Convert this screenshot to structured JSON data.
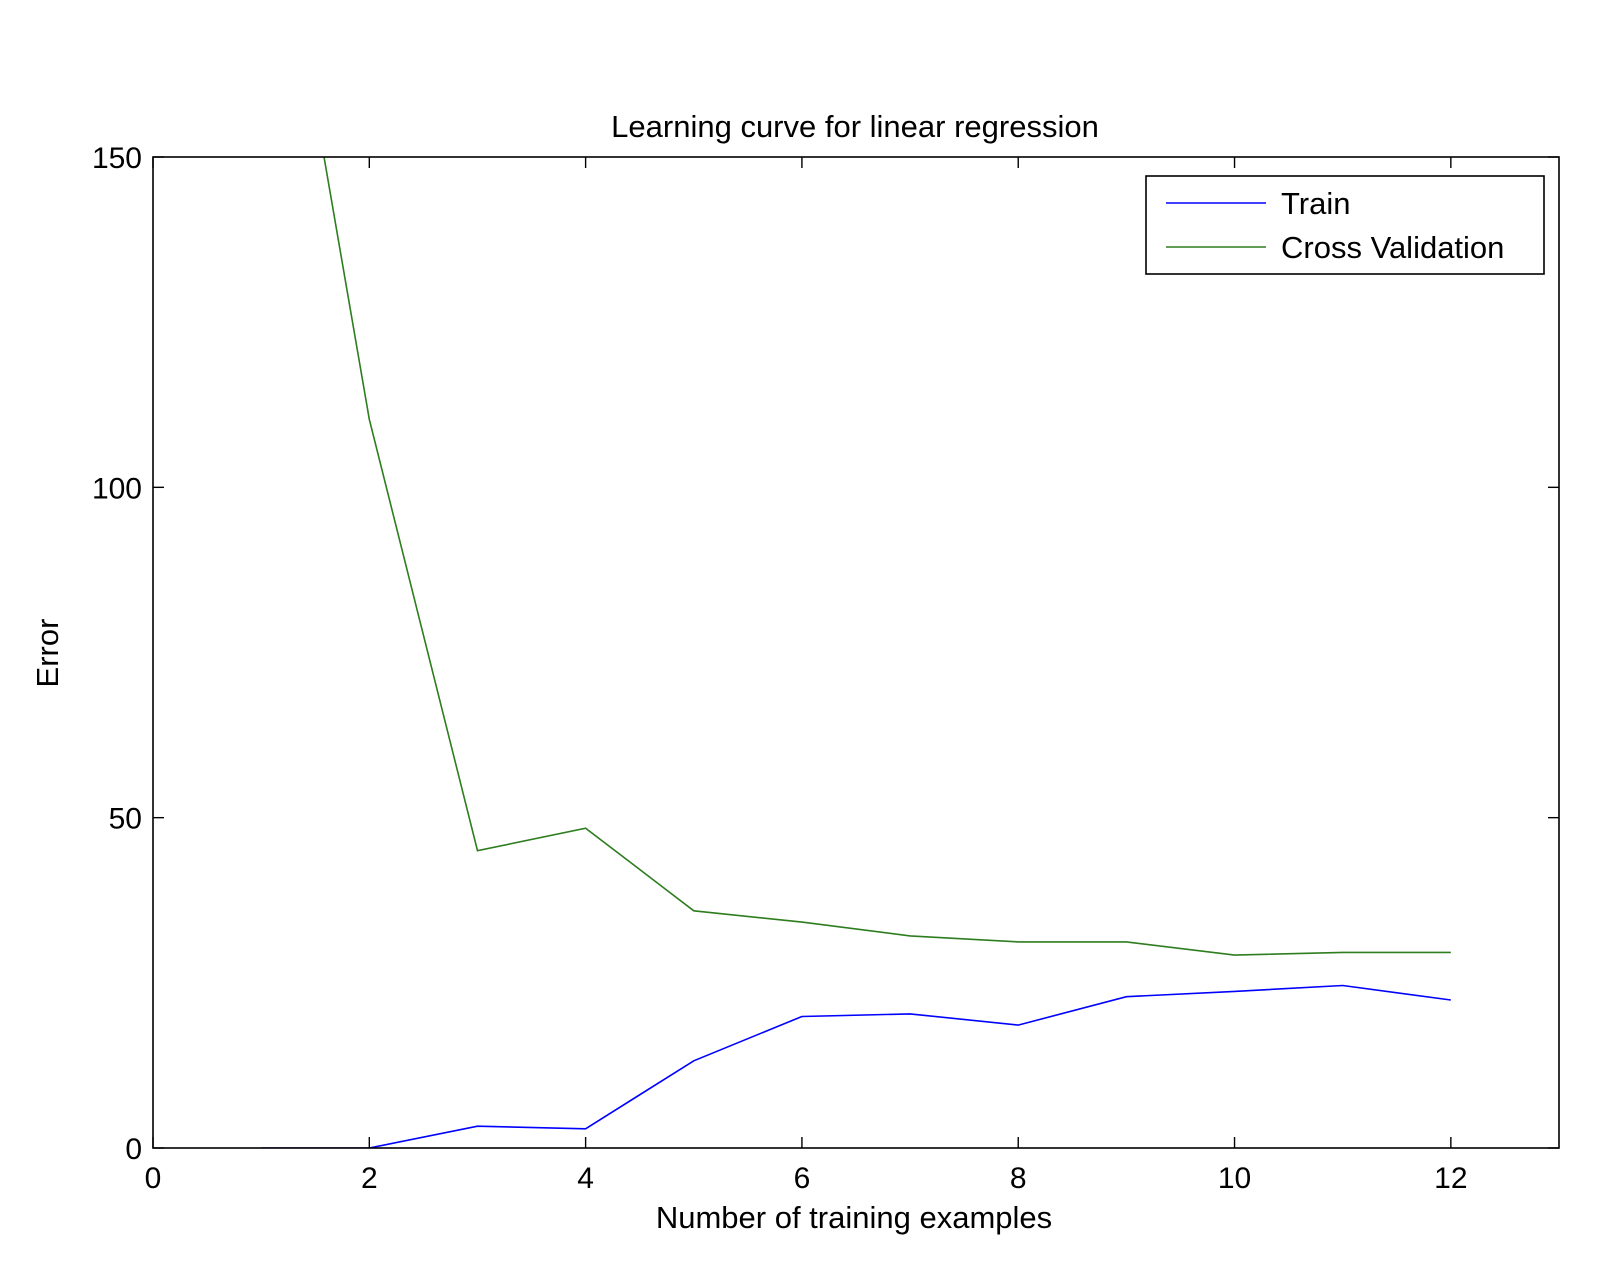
{
  "chart_data": {
    "type": "line",
    "title": "Learning curve for linear regression",
    "xlabel": "Number of training examples",
    "ylabel": "Error",
    "xlim": [
      0,
      13
    ],
    "ylim": [
      0,
      150
    ],
    "xticks": [
      0,
      2,
      4,
      6,
      8,
      10,
      12
    ],
    "yticks": [
      0,
      50,
      100,
      150
    ],
    "xtick_labels": [
      "0",
      "2",
      "4",
      "6",
      "8",
      "10",
      "12"
    ],
    "ytick_labels": [
      "0",
      "50",
      "100",
      "150"
    ],
    "grid": false,
    "legend_position": "top-right",
    "series": [
      {
        "name": "Train",
        "color": "#0000ff",
        "x": [
          1,
          2,
          3,
          4,
          5,
          6,
          7,
          8,
          9,
          10,
          11,
          12
        ],
        "y": [
          0,
          0,
          3.3,
          2.9,
          13.2,
          19.9,
          20.3,
          18.6,
          22.9,
          23.7,
          24.6,
          22.4
        ]
      },
      {
        "name": "Cross Validation",
        "color": "#2e7d1f",
        "x": [
          1,
          2,
          3,
          4,
          5,
          6,
          7,
          8,
          9,
          10,
          11,
          12
        ],
        "y": [
          205.1,
          110.3,
          45.0,
          48.4,
          35.9,
          34.2,
          32.1,
          31.2,
          31.2,
          29.2,
          29.6,
          29.6
        ]
      }
    ]
  }
}
